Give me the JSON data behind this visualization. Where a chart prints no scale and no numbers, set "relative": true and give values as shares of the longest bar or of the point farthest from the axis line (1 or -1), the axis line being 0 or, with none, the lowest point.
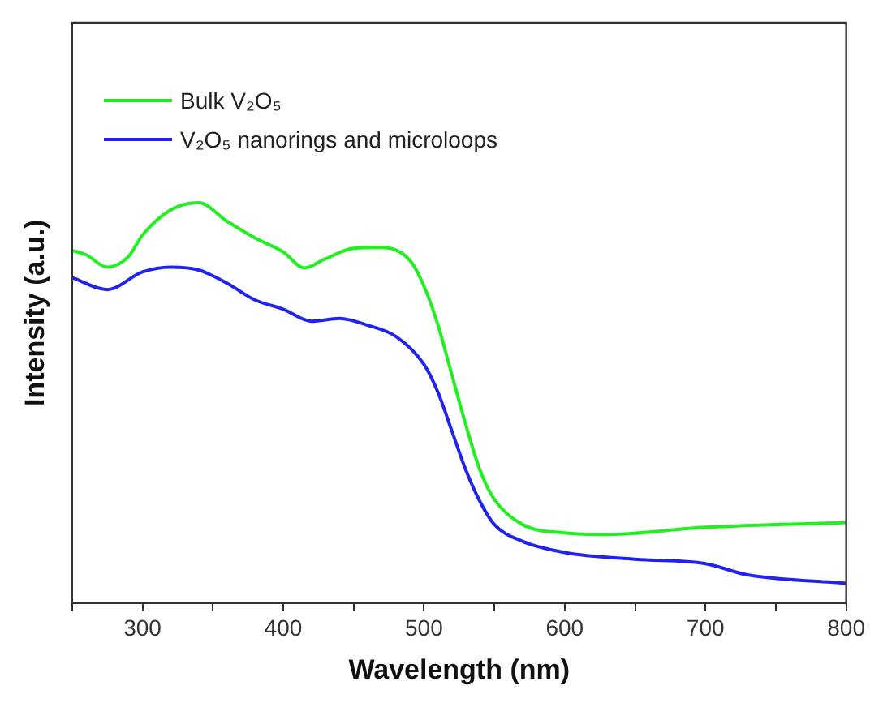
{
  "chart_data": {
    "type": "line",
    "relative": true,
    "xlabel": "Wavelength (nm)",
    "ylabel": "Intensity (a.u.)",
    "xlim": [
      250,
      800
    ],
    "xticks": [
      {
        "value": 250,
        "label": null
      },
      300,
      {
        "value": 350,
        "label": null
      },
      400,
      {
        "value": 450,
        "label": null
      },
      500,
      {
        "value": 550,
        "label": null
      },
      600,
      {
        "value": 650,
        "label": null
      },
      700,
      {
        "value": 750,
        "label": null
      },
      800
    ],
    "legend": "top left",
    "grid": false,
    "marker": "none",
    "line_style": "solid",
    "series": [
      {
        "name": "Bulk V₂O₅",
        "color": "#22ee22",
        "x": [
          250,
          260,
          275,
          290,
          300,
          320,
          340,
          360,
          380,
          400,
          415,
          430,
          450,
          470,
          490,
          500,
          510,
          520,
          530,
          540,
          550,
          570,
          600,
          630,
          700,
          800
        ],
        "values": [
          0.881,
          0.87,
          0.839,
          0.865,
          0.919,
          0.982,
          1.0,
          0.954,
          0.912,
          0.877,
          0.837,
          0.86,
          0.886,
          0.888,
          0.856,
          0.792,
          0.694,
          0.568,
          0.442,
          0.33,
          0.259,
          0.196,
          0.175,
          0.171,
          0.189,
          0.201
        ]
      },
      {
        "name": "V₂O₅ nanorings and microloops",
        "color": "#2222ee",
        "x": [
          250,
          275,
          300,
          320,
          340,
          360,
          380,
          400,
          420,
          440,
          460,
          480,
          500,
          510,
          520,
          530,
          540,
          550,
          570,
          600,
          650,
          700,
          730,
          800
        ],
        "values": [
          0.813,
          0.783,
          0.827,
          0.839,
          0.832,
          0.799,
          0.757,
          0.734,
          0.704,
          0.711,
          0.694,
          0.666,
          0.596,
          0.526,
          0.428,
          0.33,
          0.252,
          0.196,
          0.154,
          0.126,
          0.109,
          0.098,
          0.07,
          0.049
        ]
      }
    ]
  }
}
